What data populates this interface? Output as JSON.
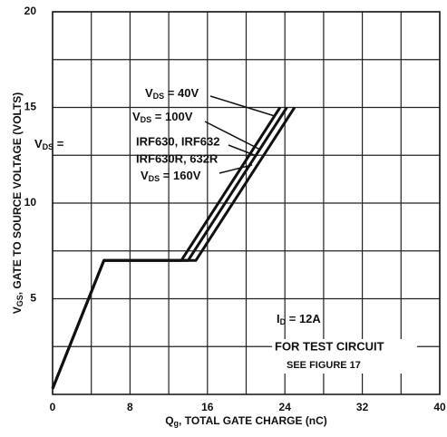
{
  "chart_data": {
    "type": "line",
    "xlabel": {
      "pre": "Q",
      "sub": "g",
      "post": ", TOTAL GATE CHARGE (nC)"
    },
    "ylabel": {
      "pre": "V",
      "sub": "GS",
      "post": ", GATE TO SOURCE VOLTAGE (VOLTS)"
    },
    "xlim": [
      0,
      40
    ],
    "xticks": [
      0,
      8,
      16,
      24,
      32,
      40
    ],
    "xminor": [
      4,
      12,
      20,
      28,
      36
    ],
    "ylim": [
      0,
      20
    ],
    "yticks": [
      5,
      10,
      15,
      20
    ],
    "yminor": [
      2.5,
      7.5,
      12.5,
      17.5
    ],
    "grid": true,
    "series": [
      {
        "color": "#111",
        "x": [
          0,
          5.3,
          13.3,
          23.5
        ],
        "values": [
          0.3,
          7,
          7,
          15
        ]
      },
      {
        "color": "#111",
        "x": [
          0,
          5.3,
          14,
          24.2
        ],
        "values": [
          0.3,
          7,
          7,
          15
        ]
      },
      {
        "color": "#111",
        "x": [
          0,
          5.3,
          14.8,
          25
        ],
        "values": [
          0.3,
          7,
          7,
          15
        ]
      }
    ],
    "annotations": {
      "vds40": {
        "pre": "V",
        "sub": "DS",
        "post": " = 40V"
      },
      "vds100": {
        "pre": "V",
        "sub": "DS",
        "post": " = 100V"
      },
      "vdsleft": {
        "pre": "V",
        "sub": "DS",
        "post": " ="
      },
      "part1": "IRF630, IRF632",
      "part2": "IRF630R, 632R",
      "vds160": {
        "pre": "V",
        "sub": "DS",
        "post": " = 160V"
      },
      "id": {
        "pre": "I",
        "sub": "D",
        "post": " = 12A"
      },
      "test1": "FOR TEST CIRCUIT",
      "test2": "SEE FIGURE 17"
    }
  }
}
